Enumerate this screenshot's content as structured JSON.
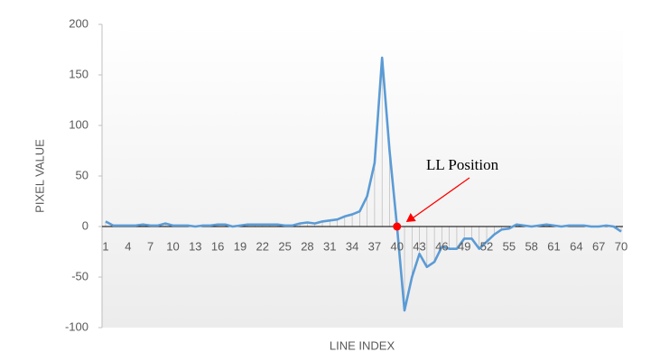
{
  "chart_data": {
    "type": "line",
    "x_label": "LINE INDEX",
    "y_label": "PIXEL VALUE",
    "categories": [
      1,
      null,
      null,
      4,
      null,
      null,
      7,
      null,
      null,
      10,
      null,
      null,
      13,
      null,
      null,
      16,
      null,
      null,
      19,
      null,
      null,
      22,
      null,
      null,
      25,
      null,
      null,
      28,
      null,
      null,
      31,
      null,
      null,
      34,
      null,
      null,
      37,
      null,
      null,
      40,
      null,
      null,
      43,
      null,
      null,
      46,
      null,
      null,
      49,
      null,
      null,
      52,
      null,
      null,
      55,
      null,
      null,
      58,
      null,
      null,
      61,
      null,
      null,
      64,
      null,
      null,
      67,
      null,
      null,
      70
    ],
    "series": [
      {
        "color": "#5b9bd5",
        "values": [
          5,
          1,
          1,
          1,
          1,
          2,
          1,
          1,
          3,
          1,
          1,
          1,
          0,
          1,
          1,
          2,
          2,
          0,
          1,
          2,
          2,
          2,
          2,
          2,
          1,
          1,
          3,
          4,
          3,
          5,
          6,
          7,
          10,
          12,
          15,
          30,
          63,
          167,
          75,
          0,
          -83,
          -50,
          -27,
          -40,
          -35,
          -20,
          -22,
          -22,
          -12,
          -12,
          -22,
          -15,
          -8,
          -3,
          -2,
          2,
          1,
          0,
          1,
          2,
          1,
          0,
          1,
          1,
          1,
          0,
          0,
          1,
          0,
          -5
        ]
      }
    ],
    "ylim": [
      -100,
      200
    ],
    "yticks": [
      -100,
      -50,
      0,
      50,
      100,
      150,
      200
    ],
    "drop_lines": true,
    "annotation": {
      "text": "LL Position",
      "index": 39,
      "color": "#ff0000"
    }
  }
}
